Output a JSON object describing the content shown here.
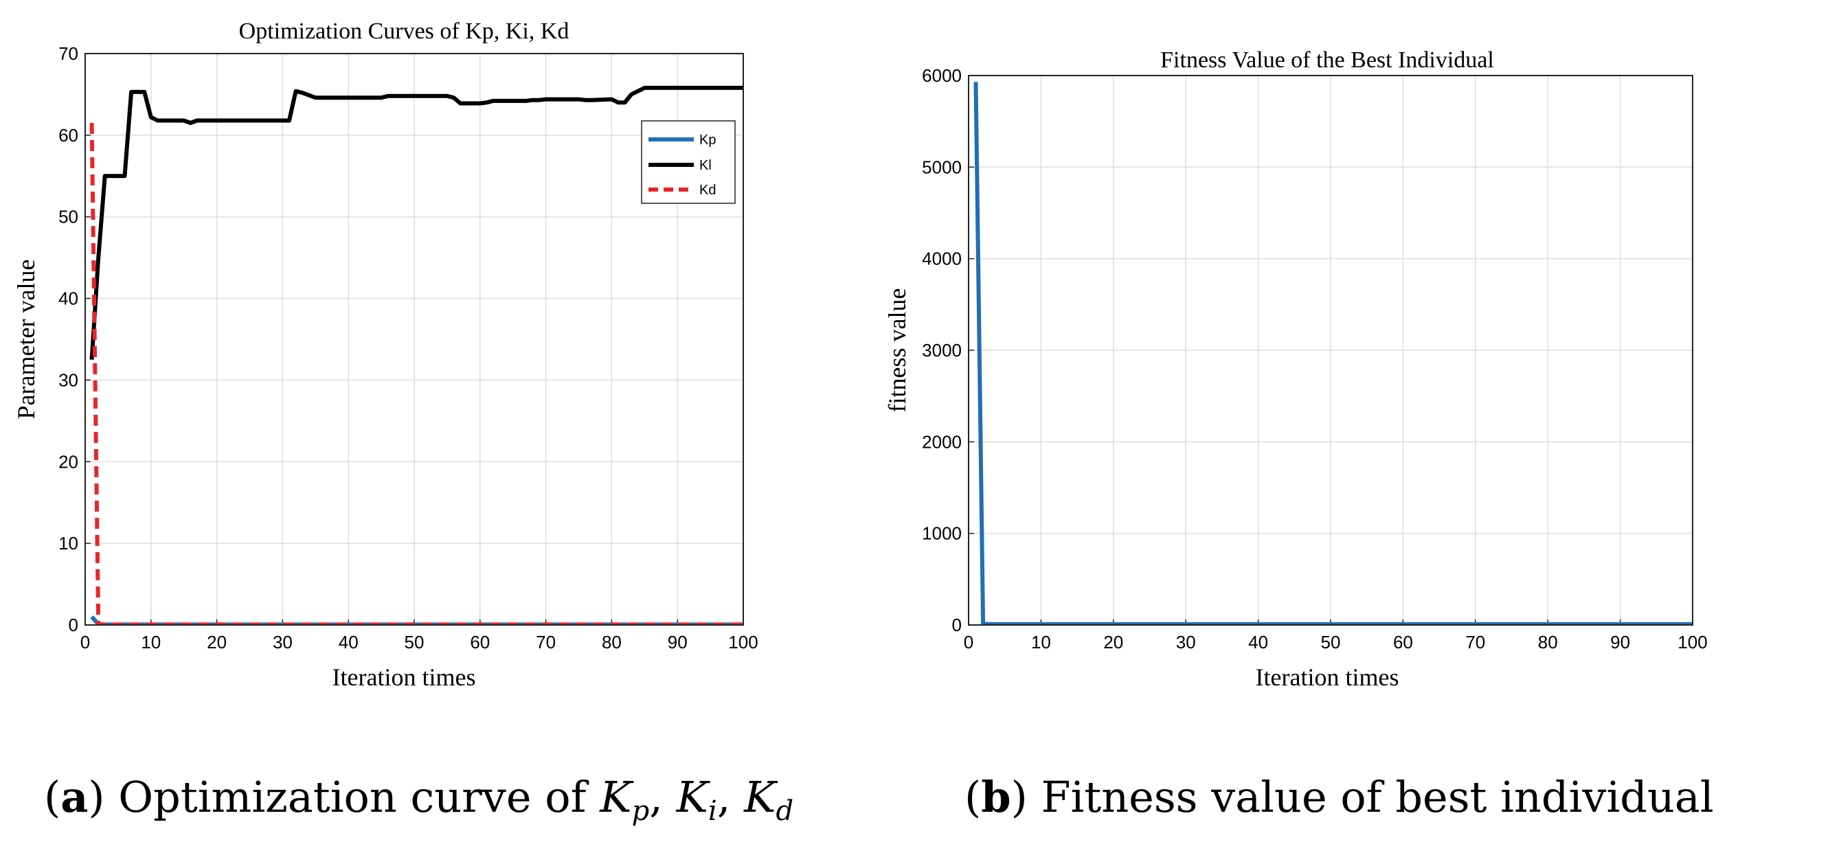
{
  "chart_data": [
    {
      "type": "line",
      "title": "Optimization Curves of Kp, Ki, Kd",
      "xlabel": "Iteration times",
      "ylabel": "Parameter value",
      "xlim": [
        0,
        100
      ],
      "ylim": [
        0,
        70
      ],
      "xticks": [
        0,
        10,
        20,
        30,
        40,
        50,
        60,
        70,
        80,
        90,
        100
      ],
      "yticks": [
        0,
        10,
        20,
        30,
        40,
        50,
        60,
        70
      ],
      "grid": true,
      "legend_position": "top-right",
      "series": [
        {
          "name": "Kp",
          "color": "#1f6fb6",
          "style": "solid",
          "x": [
            1,
            2,
            3,
            100
          ],
          "y": [
            1.0,
            0.1,
            0.05,
            0.05
          ]
        },
        {
          "name": "Kl",
          "color": "#000000",
          "style": "solid",
          "x": [
            1,
            2,
            3,
            5,
            6,
            7,
            9,
            10,
            11,
            15,
            16,
            17,
            30,
            31,
            32,
            33,
            35,
            36,
            44,
            45,
            46,
            47,
            55,
            56,
            57,
            60,
            61,
            62,
            63,
            67,
            68,
            69,
            70,
            75,
            76,
            77,
            80,
            81,
            82,
            83,
            84,
            85,
            100
          ],
          "y": [
            32.5,
            45.0,
            55.0,
            55.0,
            55.0,
            65.3,
            65.3,
            62.2,
            61.8,
            61.8,
            61.5,
            61.8,
            61.8,
            61.8,
            65.4,
            65.2,
            64.6,
            64.6,
            64.6,
            64.6,
            64.8,
            64.8,
            64.8,
            64.6,
            63.9,
            63.9,
            64.0,
            64.2,
            64.2,
            64.2,
            64.3,
            64.3,
            64.4,
            64.4,
            64.3,
            64.3,
            64.4,
            64.0,
            64.0,
            65.0,
            65.4,
            65.8,
            65.8
          ]
        },
        {
          "name": "Kd",
          "color": "#e8262a",
          "style": "dashed",
          "x": [
            1,
            2,
            3,
            100
          ],
          "y": [
            61.5,
            0.1,
            0.05,
            0.05
          ]
        }
      ]
    },
    {
      "type": "line",
      "title": "Fitness Value of the Best Individual",
      "xlabel": "Iteration times",
      "ylabel": "fitness value",
      "xlim": [
        0,
        100
      ],
      "ylim": [
        0,
        6000
      ],
      "xticks": [
        0,
        10,
        20,
        30,
        40,
        50,
        60,
        70,
        80,
        90,
        100
      ],
      "yticks": [
        0,
        1000,
        2000,
        3000,
        4000,
        5000,
        6000
      ],
      "grid": true,
      "series": [
        {
          "name": "fitness",
          "color": "#1f6fb6",
          "style": "solid",
          "x": [
            1,
            2,
            3,
            100
          ],
          "y": [
            5930,
            12,
            8,
            8
          ]
        }
      ]
    }
  ],
  "captions": [
    {
      "letter": "a",
      "text": "Optimization curve of",
      "symbols": [
        {
          "base": "K",
          "sub": "p",
          "sep": ","
        },
        {
          "base": "K",
          "sub": "i",
          "sep": ","
        },
        {
          "base": "K",
          "sub": "d",
          "sep": ""
        }
      ]
    },
    {
      "letter": "b",
      "text": "Fitness value of best individual"
    }
  ]
}
